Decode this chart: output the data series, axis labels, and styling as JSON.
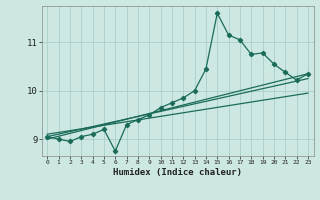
{
  "xlabel": "Humidex (Indice chaleur)",
  "bg_color": "#cde8e2",
  "grid_color": "#aacfc8",
  "line_color": "#1a6b5a",
  "xlim": [
    -0.5,
    23.5
  ],
  "ylim": [
    8.65,
    11.75
  ],
  "xticks": [
    0,
    1,
    2,
    3,
    4,
    5,
    6,
    7,
    8,
    9,
    10,
    11,
    12,
    13,
    14,
    15,
    16,
    17,
    18,
    19,
    20,
    21,
    22,
    23
  ],
  "yticks": [
    9,
    10,
    11
  ],
  "main_x": [
    0,
    1,
    2,
    3,
    4,
    5,
    6,
    7,
    8,
    9,
    10,
    11,
    12,
    13,
    14,
    15,
    16,
    17,
    18,
    19,
    20,
    21,
    22,
    23
  ],
  "main_y": [
    9.05,
    9.0,
    8.95,
    9.05,
    9.1,
    9.2,
    8.75,
    9.3,
    9.4,
    9.5,
    9.65,
    9.75,
    9.85,
    10.0,
    10.45,
    11.6,
    11.15,
    11.05,
    10.75,
    10.78,
    10.55,
    10.38,
    10.22,
    10.35
  ],
  "trend1_x": [
    0,
    23
  ],
  "trend1_y": [
    9.0,
    10.35
  ],
  "trend2_x": [
    0,
    23
  ],
  "trend2_y": [
    9.05,
    10.25
  ],
  "trend3_x": [
    0,
    23
  ],
  "trend3_y": [
    9.1,
    9.95
  ]
}
